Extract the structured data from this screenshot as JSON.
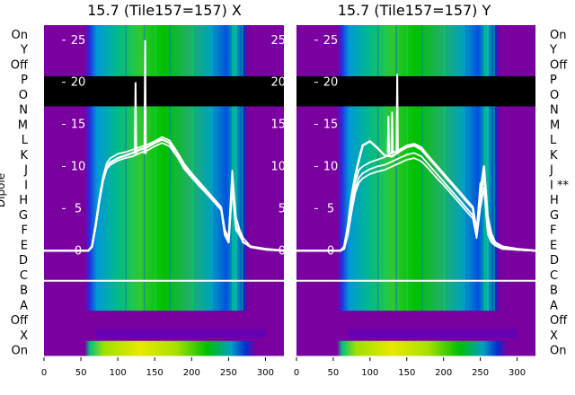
{
  "colors": {
    "background_purple": "#7a00a0",
    "flagged_band": "#000000",
    "trace": "#ffffff"
  },
  "chart_data": [
    {
      "type": "heatmap",
      "title": "15.7 (Tile157=157) X",
      "ylabel": "Dipole",
      "row_labels_top_to_bottom": [
        "On",
        "Y",
        "Off",
        "P",
        "O",
        "N",
        "M",
        "L",
        "K",
        "J",
        "I",
        "H",
        "G",
        "F",
        "E",
        "D",
        "C",
        "B",
        "A",
        "Off",
        "X",
        "On"
      ],
      "row_flags": {},
      "xticks": [
        0,
        50,
        100,
        150,
        200,
        250,
        300
      ],
      "xlim": [
        0,
        325
      ],
      "overlay_yticks": [
        0,
        5,
        10,
        15,
        20,
        25
      ],
      "overlay_ylim": [
        0,
        27
      ],
      "flagged_rows": [
        "O"
      ],
      "spectrum_x": [
        0,
        20,
        40,
        60,
        65,
        70,
        75,
        80,
        85,
        90,
        100,
        110,
        120,
        130,
        140,
        150,
        160,
        170,
        180,
        190,
        200,
        210,
        220,
        230,
        240,
        245,
        250,
        255,
        260,
        265,
        270,
        280,
        300,
        325
      ],
      "series": [
        {
          "values": [
            0,
            0,
            0,
            0,
            0.5,
            3,
            6,
            8.5,
            10,
            10.5,
            11,
            11.3,
            11.6,
            12,
            12.3,
            12.8,
            13.2,
            12.8,
            11.5,
            10,
            9,
            8,
            7,
            6,
            5,
            2,
            1,
            8,
            3,
            2,
            1,
            0.5,
            0.2,
            0
          ]
        },
        {
          "values": [
            0,
            0,
            0,
            0,
            0.6,
            3.2,
            6.3,
            8.8,
            10.4,
            11,
            11.5,
            11.7,
            12,
            12.3,
            12.6,
            13,
            13.5,
            13.1,
            11.8,
            10.3,
            9.2,
            8.2,
            7.2,
            6.2,
            5.2,
            2.5,
            1.5,
            9.5,
            4,
            2.5,
            1.5,
            0.5,
            0.2,
            0
          ]
        },
        {
          "values": [
            0,
            0,
            0,
            0,
            0.4,
            2.8,
            5.8,
            8.2,
            9.7,
            10.2,
            10.7,
            11,
            11.2,
            11.6,
            11.9,
            12.4,
            12.8,
            12.4,
            11.2,
            9.7,
            8.7,
            7.7,
            6.8,
            5.8,
            4.8,
            1.8,
            1,
            7.5,
            2.5,
            1.8,
            1,
            0.4,
            0.1,
            0
          ]
        }
      ],
      "spikes": [
        {
          "x": 124,
          "y": 20
        },
        {
          "x": 137,
          "y": 25
        }
      ]
    },
    {
      "type": "heatmap",
      "title": "15.7 (Tile157=157) Y",
      "row_labels_top_to_bottom": [
        "On",
        "Y",
        "Off",
        "P",
        "O",
        "N",
        "M",
        "L",
        "K",
        "J",
        "I",
        "H",
        "G",
        "F",
        "E",
        "D",
        "C",
        "B",
        "A",
        "Off",
        "X",
        "On"
      ],
      "row_flags": {
        "I": "**"
      },
      "xticks": [
        0,
        50,
        100,
        150,
        200,
        250,
        300
      ],
      "xlim": [
        0,
        325
      ],
      "overlay_yticks": [
        0,
        5,
        10,
        15,
        20,
        25
      ],
      "overlay_ylim": [
        0,
        27
      ],
      "flagged_rows": [
        "O"
      ],
      "spectrum_x": [
        0,
        20,
        40,
        60,
        65,
        70,
        75,
        80,
        85,
        90,
        100,
        110,
        120,
        130,
        140,
        150,
        160,
        170,
        180,
        190,
        200,
        210,
        220,
        230,
        240,
        245,
        250,
        255,
        260,
        265,
        270,
        280,
        300,
        325
      ],
      "series": [
        {
          "values": [
            0,
            0,
            0,
            0,
            0.5,
            3,
            6.5,
            9,
            10.8,
            12.5,
            13,
            12.2,
            11.3,
            11.2,
            11.8,
            12.3,
            12.5,
            12,
            11,
            10,
            9,
            8,
            7,
            6,
            5,
            2,
            7,
            10,
            4,
            2,
            1,
            0.5,
            0.2,
            0
          ]
        },
        {
          "values": [
            0,
            0,
            0,
            0,
            0.4,
            2.6,
            5.8,
            8.2,
            9.6,
            10,
            10.5,
            10.8,
            11.1,
            11.6,
            12,
            12.5,
            12.7,
            12.3,
            11.2,
            10.2,
            9.2,
            8.2,
            7.2,
            6.2,
            5.2,
            2.5,
            8,
            8.5,
            3,
            1.5,
            1,
            0.4,
            0.1,
            0
          ]
        },
        {
          "values": [
            0,
            0,
            0,
            0,
            0.3,
            2.2,
            5,
            7.4,
            8.7,
            9.2,
            9.7,
            10,
            10.2,
            10.6,
            11,
            11.4,
            11.6,
            11.2,
            10.2,
            9.2,
            8.2,
            7.2,
            6.2,
            5.2,
            4.2,
            1.8,
            6,
            9,
            2.5,
            1.2,
            0.8,
            0.3,
            0.1,
            0
          ]
        },
        {
          "values": [
            0,
            0,
            0,
            0,
            0.2,
            1.9,
            4.6,
            6.9,
            8.1,
            8.6,
            9.1,
            9.4,
            9.6,
            10,
            10.4,
            10.8,
            11,
            10.6,
            9.7,
            8.7,
            7.8,
            6.8,
            5.8,
            4.8,
            3.8,
            1.5,
            5,
            7.5,
            2,
            1,
            0.6,
            0.2,
            0.1,
            0
          ]
        }
      ],
      "spikes": [
        {
          "x": 125,
          "y": 16
        },
        {
          "x": 130,
          "y": 16.5
        },
        {
          "x": 137,
          "y": 21
        }
      ]
    }
  ]
}
